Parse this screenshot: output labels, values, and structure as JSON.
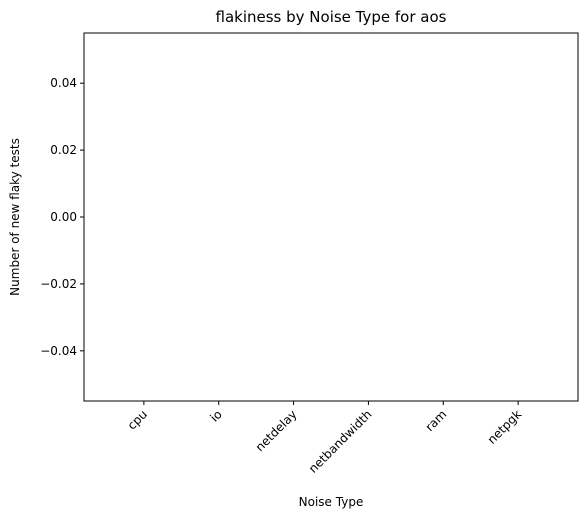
{
  "chart_data": {
    "type": "bar",
    "title": "flakiness by Noise Type for aos",
    "xlabel": "Noise Type",
    "ylabel": "Number of new flaky tests",
    "categories": [
      "cpu",
      "io",
      "netdelay",
      "netbandwidth",
      "ram",
      "netpgk"
    ],
    "values": [
      0,
      0,
      0,
      0,
      0,
      0
    ],
    "ylim": [
      -0.055,
      0.055
    ],
    "yticks": [
      0.04,
      0.02,
      0.0,
      -0.02,
      -0.04
    ],
    "ytick_labels": [
      "0.04",
      "0.02",
      "0.00",
      "−0.02",
      "−0.04"
    ],
    "xtick_rotation": 45,
    "grid": false,
    "legend": "none"
  }
}
